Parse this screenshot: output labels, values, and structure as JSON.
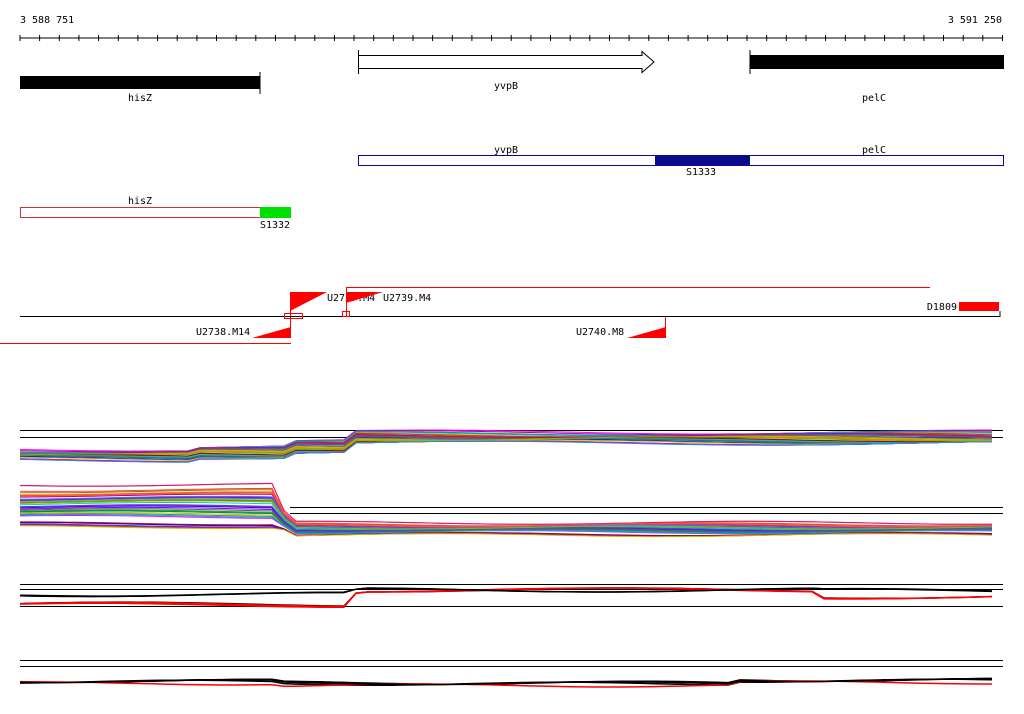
{
  "coordinates": {
    "start": "3 588 751",
    "end": "3 591 250"
  },
  "gene_track": {
    "genes": [
      {
        "name": "hisZ",
        "style": "filled"
      },
      {
        "name": "yvpB",
        "style": "arrow"
      },
      {
        "name": "pelC",
        "style": "filled"
      }
    ]
  },
  "segment_tracks": [
    {
      "genes": [
        "yvpB",
        "pelC"
      ],
      "segment": {
        "name": "S1333",
        "color": "#0a0a8c"
      },
      "outline_color": "#0a0a8c"
    },
    {
      "genes": [
        "hisZ"
      ],
      "segment": {
        "name": "S1332",
        "color": "#00e000"
      },
      "outline_color": "#d03030"
    }
  ],
  "feature_track": {
    "color": "#ff0000",
    "features": [
      "U2737.M4",
      "U2739.M4",
      "D1809",
      "U2738.M14",
      "U2740.M8"
    ]
  },
  "colors": {
    "feature": "#ff0000",
    "axis": "#000000",
    "expression_highlight": "#ff0000"
  }
}
